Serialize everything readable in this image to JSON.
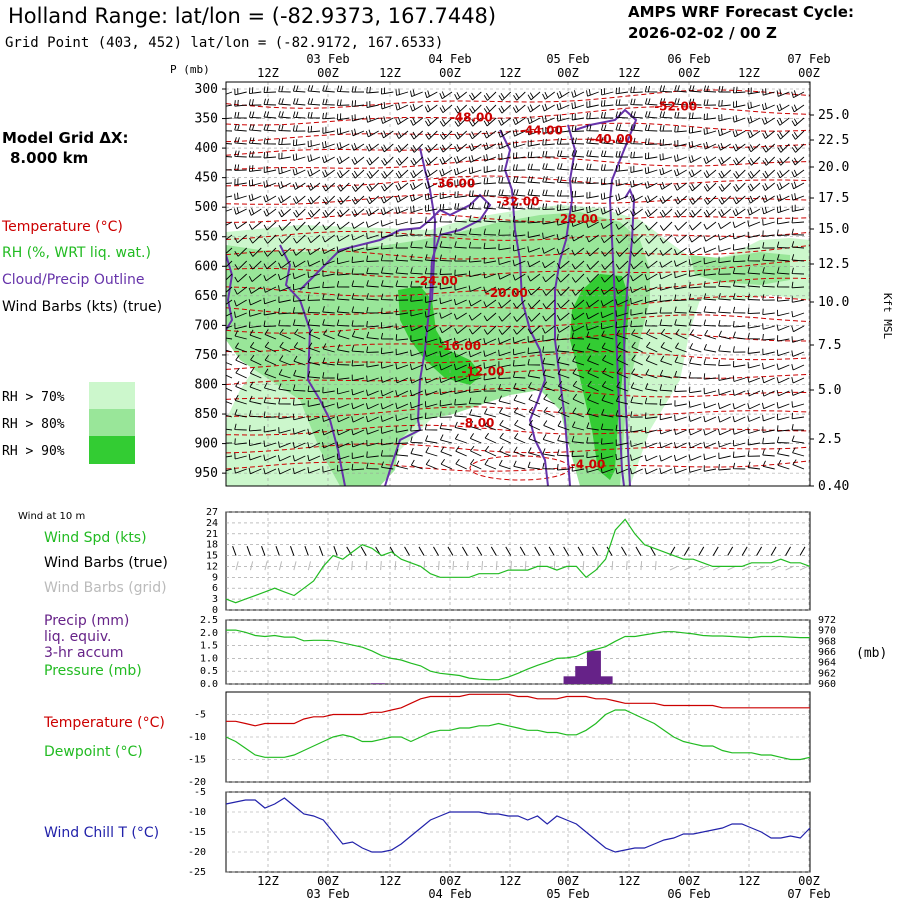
{
  "header": {
    "title": "Holland Range:  lat/lon = (-82.9373, 167.7448)",
    "subtitle": "Grid Point (403, 452) lat/lon = (-82.9172, 167.6533)",
    "cycle_title": "AMPS WRF Forecast Cycle:",
    "cycle_value": "2026-02-02 / 00  Z"
  },
  "left_panel": {
    "model_grid_label": "Model Grid ΔX:",
    "model_grid_value": "8.000 km",
    "legend_temperature": "Temperature (°C)",
    "legend_rh": "RH (%, WRT liq. wat.)",
    "legend_cloud": "Cloud/Precip Outline",
    "legend_wind": "Wind Barbs (kts) (true)",
    "rh_keys": [
      "RH > 70%",
      "RH > 80%",
      "RH > 90%"
    ]
  },
  "time_axis": {
    "hour_labels": [
      "12Z",
      "00Z",
      "12Z",
      "00Z",
      "12Z",
      "00Z",
      "12Z",
      "00Z",
      "12Z",
      "00Z"
    ],
    "date_labels": [
      "03 Feb",
      "04 Feb",
      "05 Feb",
      "06 Feb",
      "07 Feb"
    ]
  },
  "colors": {
    "rh70": "#ccf7cc",
    "rh80": "#99e699",
    "rh90": "#33cc33",
    "temperature": "#cc0000",
    "cloud_outline": "#6633aa",
    "wind_speed": "#22bb22",
    "wind_barbs_grid": "#bbbbbb",
    "precip": "#662288",
    "pressure": "#22bb22",
    "dewpoint": "#22bb22",
    "wind_chill": "#2222aa"
  },
  "chart_data": [
    {
      "type": "heatmap",
      "panel": "cross-section",
      "ylabel": "P (mb)",
      "ylabel_right": "Kft MSL",
      "y_ticks_left": [
        "300",
        "350",
        "400",
        "450",
        "500",
        "550",
        "600",
        "650",
        "700",
        "750",
        "800",
        "850",
        "900",
        "950"
      ],
      "y_ticks_right": [
        "25.0",
        "22.5",
        "20.0",
        "17.5",
        "15.0",
        "12.5",
        "10.0",
        "7.5",
        "5.0",
        "2.5",
        "0.40"
      ],
      "temperature_contour_labels": [
        {
          "text": "-52.00",
          "t": 3.85,
          "p": 330
        },
        {
          "text": "-48.00",
          "t": 2.1,
          "p": 348
        },
        {
          "text": "-44.00",
          "t": 2.7,
          "p": 370
        },
        {
          "text": "-40.00",
          "t": 3.3,
          "p": 385
        },
        {
          "text": "-36.00",
          "t": 1.95,
          "p": 460
        },
        {
          "text": "-32.00",
          "t": 2.5,
          "p": 490
        },
        {
          "text": "-28.00",
          "t": 3.0,
          "p": 520
        },
        {
          "text": "-24.00",
          "t": 1.8,
          "p": 625
        },
        {
          "text": "-20.00",
          "t": 2.4,
          "p": 645
        },
        {
          "text": "-16.00",
          "t": 2.0,
          "p": 735
        },
        {
          "text": "-12.00",
          "t": 2.2,
          "p": 778
        },
        {
          "text": "-8.00",
          "t": 2.15,
          "p": 865
        },
        {
          "text": "-4.00",
          "t": 3.1,
          "p": 935
        }
      ]
    },
    {
      "type": "line",
      "panel": "wind",
      "label": "Wind at 10 m",
      "legend": [
        "Wind Spd (kts)",
        "Wind Barbs (true)",
        "Wind Barbs (grid)"
      ],
      "y_ticks": [
        "27",
        "24",
        "21",
        "18",
        "15",
        "12",
        "9",
        "6",
        "3",
        "0"
      ],
      "ylim": [
        0,
        27
      ],
      "x": [
        0.0,
        0.08,
        0.17,
        0.25,
        0.33,
        0.42,
        0.5,
        0.58,
        0.67,
        0.75,
        0.83,
        0.92,
        1.0,
        1.08,
        1.17,
        1.25,
        1.33,
        1.42,
        1.5,
        1.58,
        1.67,
        1.75,
        1.83,
        1.92,
        2.0,
        2.08,
        2.17,
        2.25,
        2.33,
        2.42,
        2.5,
        2.58,
        2.67,
        2.75,
        2.83,
        2.92,
        3.0,
        3.08,
        3.17,
        3.25,
        3.33,
        3.42,
        3.5,
        3.58,
        3.67,
        3.75,
        3.83,
        3.92,
        4.0,
        4.08,
        4.17,
        4.25,
        4.33,
        4.42,
        4.5,
        4.58,
        4.67,
        4.75,
        4.83,
        4.92,
        5.0
      ],
      "series": [
        {
          "name": "Wind Spd (kts)",
          "values": [
            3,
            2,
            3,
            4,
            5,
            6,
            5,
            4,
            6,
            8,
            12,
            15,
            14,
            16,
            18,
            17,
            15,
            16,
            14,
            13,
            12,
            10,
            9,
            9,
            9,
            9,
            10,
            10,
            10,
            11,
            11,
            11,
            12,
            12,
            11,
            12,
            12,
            9,
            11,
            14,
            22,
            25,
            21,
            18,
            17,
            16,
            15,
            14,
            14,
            13,
            12,
            12,
            12,
            12,
            13,
            13,
            13,
            14,
            13,
            13,
            12
          ]
        }
      ]
    },
    {
      "type": "line",
      "panel": "precip-pressure",
      "legend": [
        "Precip (mm)",
        "liq. equiv.",
        "3-hr accum",
        "Pressure (mb)"
      ],
      "y_ticks_left": [
        "2.5",
        "2.0",
        "1.5",
        "1.0",
        "0.5",
        "0.0"
      ],
      "y_ticks_right": [
        "972",
        "970",
        "968",
        "966",
        "964",
        "962",
        "960"
      ],
      "ylabel_right": "(mb)",
      "ylim_left": [
        0,
        2.5
      ],
      "ylim_right": [
        960,
        972
      ],
      "precip": {
        "t": [
          1.3,
          2.95,
          3.05,
          3.15,
          3.25
        ],
        "values": [
          0.03,
          0.3,
          0.7,
          1.3,
          0.3
        ]
      },
      "series": [
        {
          "name": "Pressure (mb)",
          "values": [
            970.1,
            970.1,
            969.7,
            969.1,
            968.9,
            969.1,
            968.8,
            968.8,
            968.1,
            968.2,
            968.2,
            968.1,
            967.7,
            967.3,
            966.9,
            966.2,
            965.3,
            964.8,
            964.5,
            963.9,
            963.4,
            962.4,
            962.0,
            961.8,
            961.6,
            961.1,
            960.9,
            960.8,
            960.8,
            961.3,
            962.0,
            962.8,
            963.5,
            964.1,
            964.8,
            964.9,
            965.2,
            966.0,
            966.5,
            967.0,
            968.0,
            968.9,
            968.9,
            969.2,
            969.5,
            969.8,
            969.8,
            969.6,
            969.4,
            969.1,
            969.0,
            969.0,
            968.9,
            968.8,
            968.7,
            968.9,
            968.9,
            968.9,
            968.8,
            968.7,
            968.7
          ]
        }
      ]
    },
    {
      "type": "line",
      "panel": "temperature",
      "legend": [
        "Temperature (°C)",
        "Dewpoint (°C)"
      ],
      "y_ticks": [
        "-5",
        "-10",
        "-15",
        "-20"
      ],
      "ylim": [
        -20,
        0
      ],
      "series": [
        {
          "name": "Temperature (°C)",
          "values": [
            -6.5,
            -6.5,
            -7.0,
            -7.5,
            -7.0,
            -7.0,
            -7.0,
            -7.0,
            -6.0,
            -5.5,
            -5.5,
            -5.0,
            -5.0,
            -5.0,
            -5.0,
            -4.5,
            -4.5,
            -4.0,
            -3.5,
            -2.5,
            -1.5,
            -1.0,
            -1.0,
            -1.0,
            -1.0,
            -0.5,
            -0.5,
            -0.5,
            -0.5,
            -0.5,
            -1.0,
            -1.0,
            -1.5,
            -1.5,
            -1.5,
            -1.0,
            -1.0,
            -1.0,
            -1.5,
            -1.5,
            -2.0,
            -2.5,
            -2.5,
            -2.5,
            -2.5,
            -3.0,
            -3.0,
            -3.0,
            -3.0,
            -3.0,
            -3.0,
            -3.5,
            -3.5,
            -3.5,
            -3.5,
            -3.5,
            -3.5,
            -3.5,
            -3.5,
            -3.5,
            -3.5
          ]
        },
        {
          "name": "Dewpoint (°C)",
          "values": [
            -10,
            -11,
            -12.5,
            -14,
            -14.5,
            -14.5,
            -14.5,
            -14,
            -13,
            -12,
            -11,
            -10,
            -9.5,
            -10,
            -11,
            -11,
            -10.5,
            -10,
            -10,
            -11,
            -10,
            -9,
            -8.5,
            -8.5,
            -8,
            -8,
            -7.5,
            -7.5,
            -7,
            -7.5,
            -8,
            -8.5,
            -8.5,
            -9,
            -9,
            -9.5,
            -9.5,
            -8.5,
            -7,
            -5,
            -4,
            -4,
            -5,
            -6,
            -7,
            -8.5,
            -10,
            -11,
            -11.5,
            -12,
            -12,
            -13,
            -13.5,
            -13.5,
            -13.5,
            -14,
            -14,
            -14.5,
            -15,
            -15,
            -14.5
          ]
        }
      ]
    },
    {
      "type": "line",
      "panel": "wind-chill",
      "legend": [
        "Wind Chill T (°C)"
      ],
      "y_ticks": [
        "-5",
        "-10",
        "-15",
        "-20",
        "-25"
      ],
      "ylim": [
        -25,
        -5
      ],
      "series": [
        {
          "name": "Wind Chill T (°C)",
          "values": [
            -8,
            -7.5,
            -7,
            -7,
            -9,
            -8,
            -6.5,
            -8.5,
            -10.5,
            -11,
            -12,
            -15,
            -18,
            -17.5,
            -19,
            -20,
            -20,
            -19.5,
            -18,
            -16,
            -14,
            -12,
            -11,
            -10,
            -10,
            -10,
            -10,
            -10.5,
            -10.5,
            -11,
            -11,
            -12,
            -11,
            -13,
            -11,
            -12,
            -13,
            -15,
            -17,
            -19,
            -20,
            -19.5,
            -19,
            -19,
            -18,
            -17,
            -16.5,
            -15.5,
            -15.5,
            -15,
            -14.5,
            -14,
            -13,
            -13,
            -14,
            -15,
            -16.5,
            -16.5,
            -16,
            -16.5,
            -14
          ]
        }
      ]
    }
  ]
}
